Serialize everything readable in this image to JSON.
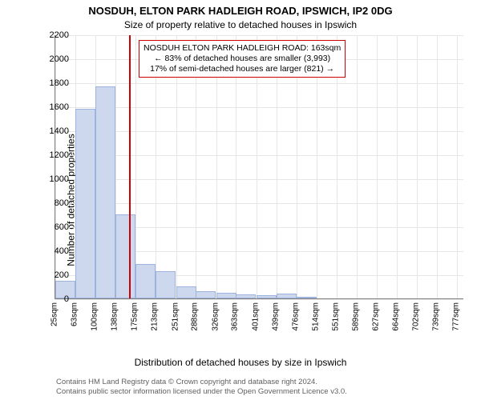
{
  "chart": {
    "type": "histogram",
    "title_main": "NOSDUH, ELTON PARK HADLEIGH ROAD, IPSWICH, IP2 0DG",
    "title_sub": "Size of property relative to detached houses in Ipswich",
    "title_main_fontsize": 13,
    "title_sub_fontsize": 12,
    "y_label": "Number of detached properties",
    "x_label": "Distribution of detached houses by size in Ipswich",
    "label_fontsize": 12,
    "background_color": "#ffffff",
    "grid_color": "#e6e6e6",
    "axis_color": "#808080",
    "bar_fill": "#cdd8ee",
    "bar_border": "#9db3dd",
    "ref_line_color": "#cc0000",
    "ref_line_width": 2,
    "ref_value_sqm": 163,
    "ylim": [
      0,
      2200
    ],
    "ytick_step": 200,
    "yticks": [
      0,
      200,
      400,
      600,
      800,
      1000,
      1200,
      1400,
      1600,
      1800,
      2000,
      2200
    ],
    "xlim_sqm": [
      25,
      790
    ],
    "xticks": [
      "25sqm",
      "63sqm",
      "100sqm",
      "138sqm",
      "175sqm",
      "213sqm",
      "251sqm",
      "288sqm",
      "326sqm",
      "363sqm",
      "401sqm",
      "439sqm",
      "476sqm",
      "514sqm",
      "551sqm",
      "589sqm",
      "627sqm",
      "664sqm",
      "702sqm",
      "739sqm",
      "777sqm"
    ],
    "xtick_values": [
      25,
      63,
      100,
      138,
      175,
      213,
      251,
      288,
      326,
      363,
      401,
      439,
      476,
      514,
      551,
      589,
      627,
      664,
      702,
      739,
      777
    ],
    "bar_width_sqm": 37.5,
    "bars": [
      {
        "x_start": 25,
        "count": 150
      },
      {
        "x_start": 63,
        "count": 1580
      },
      {
        "x_start": 100,
        "count": 1770
      },
      {
        "x_start": 138,
        "count": 700
      },
      {
        "x_start": 175,
        "count": 290
      },
      {
        "x_start": 213,
        "count": 225
      },
      {
        "x_start": 251,
        "count": 100
      },
      {
        "x_start": 288,
        "count": 60
      },
      {
        "x_start": 326,
        "count": 50
      },
      {
        "x_start": 363,
        "count": 35
      },
      {
        "x_start": 401,
        "count": 30
      },
      {
        "x_start": 439,
        "count": 40
      },
      {
        "x_start": 476,
        "count": 5
      }
    ],
    "annotation": {
      "line1": "NOSDUH ELTON PARK HADLEIGH ROAD: 163sqm",
      "line2": "← 83% of detached houses are smaller (3,993)",
      "line3": "17% of semi-detached houses are larger (821) →",
      "border_color": "#cc0000",
      "fontsize": 10.5
    },
    "footer": {
      "line1": "Contains HM Land Registry data © Crown copyright and database right 2024.",
      "line2": "Contains public sector information licensed under the Open Government Licence v3.0.",
      "color": "#606060",
      "fontsize": 9.5
    }
  }
}
